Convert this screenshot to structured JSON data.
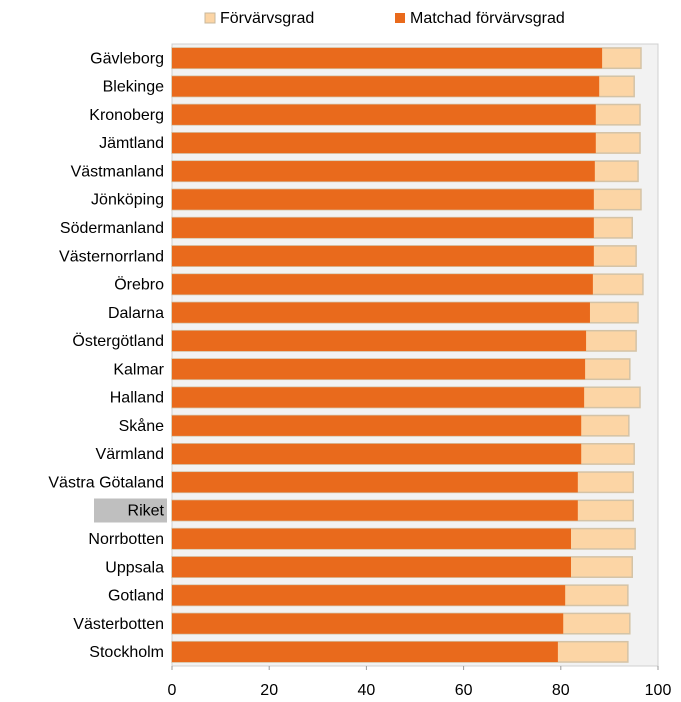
{
  "chart_data": {
    "type": "bar",
    "orientation": "horizontal",
    "categories": [
      "Gävleborg",
      "Blekinge",
      "Kronoberg",
      "Jämtland",
      "Västmanland",
      "Jönköping",
      "Södermanland",
      "Västernorrland",
      "Örebro",
      "Dalarna",
      "Östergötland",
      "Kalmar",
      "Halland",
      "Skåne",
      "Värmland",
      "Västra Götaland",
      "Riket",
      "Norrbotten",
      "Uppsala",
      "Gotland",
      "Västerbotten",
      "Stockholm"
    ],
    "series": [
      {
        "name": "Förvärvsgrad",
        "color": "#fcd5a5",
        "values": [
          96.5,
          95.1,
          96.3,
          96.3,
          95.9,
          96.5,
          94.7,
          95.5,
          96.9,
          95.9,
          95.5,
          94.2,
          96.3,
          94.0,
          95.1,
          94.9,
          94.9,
          95.3,
          94.7,
          93.8,
          94.2,
          93.8
        ]
      },
      {
        "name": "Matchad förvärvsgrad",
        "color": "#e96a1c",
        "values": [
          88.5,
          87.9,
          87.2,
          87.2,
          87.0,
          86.8,
          86.8,
          86.8,
          86.6,
          86.0,
          85.2,
          85.0,
          84.8,
          84.2,
          84.2,
          83.5,
          83.5,
          82.1,
          82.1,
          80.9,
          80.5,
          79.4
        ]
      }
    ],
    "xlim": [
      0,
      100
    ],
    "xticks": [
      0,
      20,
      40,
      60,
      80,
      100
    ],
    "highlight_category": "Riket",
    "legend": "top",
    "grid": false
  }
}
